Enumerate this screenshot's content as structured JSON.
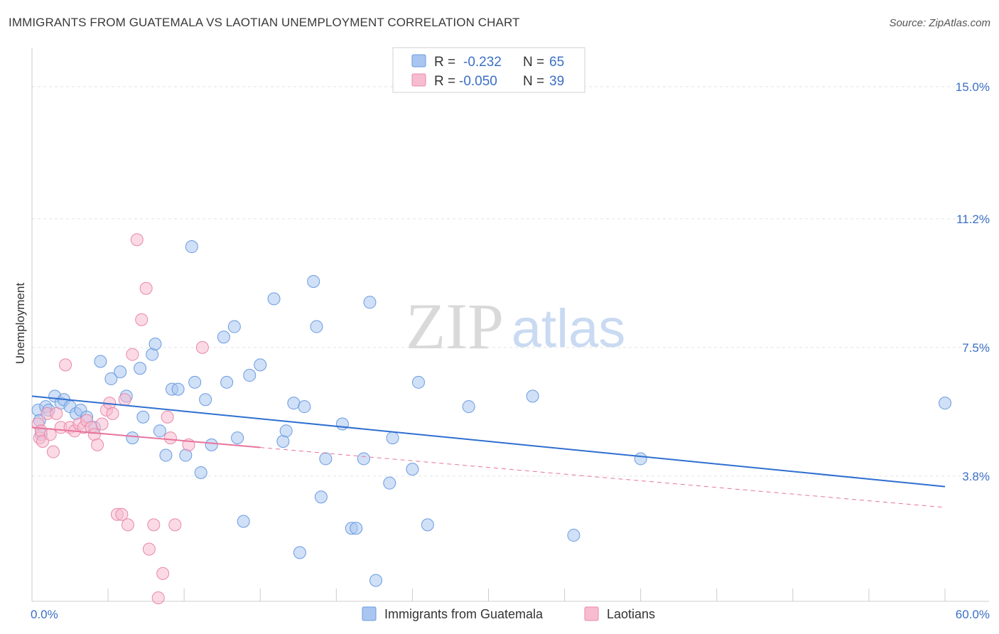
{
  "title": "IMMIGRANTS FROM GUATEMALA VS LAOTIAN UNEMPLOYMENT CORRELATION CHART",
  "source": "Source: ZipAtlas.com",
  "watermark": {
    "zip": "ZIP",
    "atlas": "atlas"
  },
  "legend_top": [
    {
      "r_label": "R =",
      "r_value": "-0.232",
      "n_label": "N =",
      "n_value": "65",
      "color": "#a9c6f0",
      "stroke": "#6a9be0"
    },
    {
      "r_label": "R =",
      "r_value": "-0.050",
      "n_label": "N =",
      "n_value": "39",
      "color": "#f7bcd0",
      "stroke": "#e888a8"
    }
  ],
  "legend_bottom": [
    {
      "label": "Immigrants from Guatemala",
      "color": "#a9c6f0",
      "stroke": "#6a9be0"
    },
    {
      "label": "Laotians",
      "color": "#f7bcd0",
      "stroke": "#e888a8"
    }
  ],
  "chart_data": {
    "type": "scatter",
    "ylabel": "Unemployment",
    "xlim": [
      0,
      60
    ],
    "ylim": [
      0.2,
      15.9
    ],
    "y_ticks": [
      {
        "value": 3.8,
        "label": "3.8%"
      },
      {
        "value": 7.5,
        "label": "7.5%"
      },
      {
        "value": 11.2,
        "label": "11.2%"
      },
      {
        "value": 15.0,
        "label": "15.0%"
      }
    ],
    "x_tick_labels": [
      {
        "value": 0,
        "label": "0.0%"
      },
      {
        "value": 60,
        "label": "60.0%"
      }
    ],
    "grid": true,
    "series": [
      {
        "name": "Immigrants from Guatemala",
        "color": "#a9c6f0",
        "stroke": "#6a9be0",
        "trend": {
          "x0": 0,
          "y0": 6.1,
          "x1": 60,
          "y1": 3.5,
          "solid_to": 60,
          "color": "#2f6fd0"
        },
        "points": [
          [
            0.4,
            5.7
          ],
          [
            0.5,
            5.4
          ],
          [
            0.6,
            5.0
          ],
          [
            0.9,
            5.8
          ],
          [
            1.1,
            5.7
          ],
          [
            1.5,
            6.1
          ],
          [
            1.9,
            5.9
          ],
          [
            2.1,
            6.0
          ],
          [
            2.5,
            5.8
          ],
          [
            2.9,
            5.6
          ],
          [
            3.2,
            5.7
          ],
          [
            3.6,
            5.5
          ],
          [
            4.1,
            5.2
          ],
          [
            4.5,
            7.1
          ],
          [
            5.2,
            6.6
          ],
          [
            5.8,
            6.8
          ],
          [
            6.2,
            6.1
          ],
          [
            6.6,
            4.9
          ],
          [
            7.1,
            6.9
          ],
          [
            7.3,
            5.5
          ],
          [
            7.9,
            7.3
          ],
          [
            8.1,
            7.6
          ],
          [
            8.4,
            5.1
          ],
          [
            8.8,
            4.4
          ],
          [
            9.2,
            6.3
          ],
          [
            9.6,
            6.3
          ],
          [
            10.1,
            4.4
          ],
          [
            10.5,
            10.4
          ],
          [
            10.7,
            6.5
          ],
          [
            11.1,
            3.9
          ],
          [
            11.4,
            6.0
          ],
          [
            11.8,
            4.7
          ],
          [
            12.6,
            7.8
          ],
          [
            12.8,
            6.5
          ],
          [
            13.3,
            8.1
          ],
          [
            13.5,
            4.9
          ],
          [
            13.9,
            2.5
          ],
          [
            14.3,
            6.7
          ],
          [
            15.0,
            7.0
          ],
          [
            15.9,
            8.9
          ],
          [
            16.5,
            4.8
          ],
          [
            16.7,
            5.1
          ],
          [
            17.2,
            5.9
          ],
          [
            17.6,
            1.6
          ],
          [
            17.9,
            5.8
          ],
          [
            18.5,
            9.4
          ],
          [
            18.7,
            8.1
          ],
          [
            19.0,
            3.2
          ],
          [
            19.3,
            4.3
          ],
          [
            20.4,
            5.3
          ],
          [
            21.0,
            2.3
          ],
          [
            21.3,
            2.3
          ],
          [
            21.8,
            4.3
          ],
          [
            22.2,
            8.8
          ],
          [
            22.6,
            0.8
          ],
          [
            23.5,
            3.6
          ],
          [
            23.7,
            4.9
          ],
          [
            25.0,
            4.0
          ],
          [
            25.4,
            6.5
          ],
          [
            26.0,
            2.4
          ],
          [
            28.7,
            5.8
          ],
          [
            32.9,
            6.1
          ],
          [
            35.6,
            2.1
          ],
          [
            40.0,
            4.3
          ],
          [
            60.0,
            5.9
          ]
        ]
      },
      {
        "name": "Laotians",
        "color": "#f7bcd0",
        "stroke": "#e888a8",
        "trend": {
          "x0": 0,
          "y0": 5.2,
          "x1": 60,
          "y1": 2.9,
          "solid_to": 15.0,
          "color": "#e8739c"
        },
        "points": [
          [
            0.4,
            5.3
          ],
          [
            0.5,
            4.9
          ],
          [
            0.6,
            5.1
          ],
          [
            0.7,
            4.8
          ],
          [
            1.0,
            5.6
          ],
          [
            1.2,
            5.0
          ],
          [
            1.4,
            4.5
          ],
          [
            1.6,
            5.6
          ],
          [
            1.9,
            5.2
          ],
          [
            2.2,
            7.0
          ],
          [
            2.5,
            5.2
          ],
          [
            2.8,
            5.1
          ],
          [
            3.1,
            5.3
          ],
          [
            3.4,
            5.2
          ],
          [
            3.6,
            5.4
          ],
          [
            3.9,
            5.2
          ],
          [
            4.1,
            5.0
          ],
          [
            4.3,
            4.7
          ],
          [
            4.6,
            5.3
          ],
          [
            4.9,
            5.7
          ],
          [
            5.1,
            5.9
          ],
          [
            5.3,
            5.6
          ],
          [
            5.6,
            2.7
          ],
          [
            5.9,
            2.7
          ],
          [
            6.1,
            6.0
          ],
          [
            6.3,
            2.4
          ],
          [
            6.6,
            7.3
          ],
          [
            6.9,
            10.6
          ],
          [
            7.2,
            8.3
          ],
          [
            7.5,
            9.2
          ],
          [
            7.7,
            1.7
          ],
          [
            8.0,
            2.4
          ],
          [
            8.3,
            0.3
          ],
          [
            8.6,
            1.0
          ],
          [
            8.9,
            5.5
          ],
          [
            9.1,
            4.9
          ],
          [
            9.4,
            2.4
          ],
          [
            10.3,
            4.7
          ],
          [
            11.2,
            7.5
          ]
        ]
      }
    ]
  }
}
